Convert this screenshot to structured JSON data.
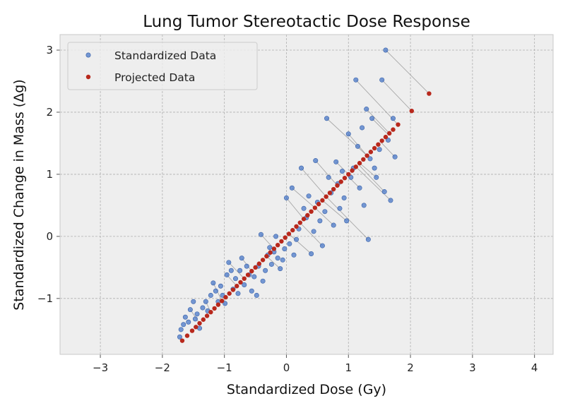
{
  "chart_data": {
    "type": "scatter",
    "title": "Lung Tumor Stereotactic Dose Response",
    "xlabel": "Standardized Dose (Gy)",
    "ylabel": "Standardized Change in Mass (Δg)",
    "xlim": [
      -3.65,
      4.3
    ],
    "ylim": [
      -1.9,
      3.25
    ],
    "xticks": [
      -3,
      -2,
      -1,
      0,
      1,
      2,
      3,
      4
    ],
    "yticks": [
      -1,
      0,
      1,
      2,
      3
    ],
    "xtick_labels": [
      "−3",
      "−2",
      "−1",
      "0",
      "1",
      "2",
      "3",
      "4"
    ],
    "ytick_labels": [
      "−1",
      "0",
      "1",
      "2",
      "3"
    ],
    "grid": true,
    "legend_position": "top-left",
    "colors": {
      "standardized": "#4a78c8",
      "projected": "#b8281c",
      "projection_line": "#8a8a8a",
      "plot_background": "#eeeeee",
      "grid": "#b0b0b0"
    },
    "series": [
      {
        "name": "Standardized Data",
        "points": [
          [
            -1.72,
            -1.62
          ],
          [
            -1.7,
            -1.5
          ],
          [
            -1.66,
            -1.42
          ],
          [
            -1.63,
            -1.3
          ],
          [
            -1.58,
            -1.38
          ],
          [
            -1.55,
            -1.18
          ],
          [
            -1.5,
            -1.05
          ],
          [
            -1.47,
            -1.33
          ],
          [
            -1.44,
            -1.25
          ],
          [
            -1.4,
            -1.48
          ],
          [
            -1.35,
            -1.15
          ],
          [
            -1.3,
            -1.05
          ],
          [
            -1.27,
            -1.2
          ],
          [
            -1.22,
            -0.95
          ],
          [
            -1.18,
            -0.75
          ],
          [
            -1.14,
            -0.88
          ],
          [
            -1.1,
            -1.05
          ],
          [
            -1.06,
            -0.8
          ],
          [
            -1.03,
            -0.95
          ],
          [
            -0.99,
            -1.08
          ],
          [
            -0.96,
            -0.62
          ],
          [
            -0.93,
            -0.42
          ],
          [
            -0.89,
            -0.55
          ],
          [
            -0.86,
            -0.85
          ],
          [
            -0.82,
            -0.68
          ],
          [
            -0.78,
            -0.92
          ],
          [
            -0.75,
            -0.55
          ],
          [
            -0.72,
            -0.35
          ],
          [
            -0.68,
            -0.78
          ],
          [
            -0.64,
            -0.48
          ],
          [
            -0.6,
            -0.62
          ],
          [
            -0.56,
            -0.88
          ],
          [
            -0.52,
            -0.65
          ],
          [
            -0.48,
            -0.95
          ],
          [
            -0.45,
            -0.48
          ],
          [
            -0.41,
            0.03
          ],
          [
            -0.38,
            -0.72
          ],
          [
            -0.34,
            -0.55
          ],
          [
            -0.3,
            -0.3
          ],
          [
            -0.27,
            -0.18
          ],
          [
            -0.24,
            -0.45
          ],
          [
            -0.2,
            -0.25
          ],
          [
            -0.17,
            0.0
          ],
          [
            -0.14,
            -0.35
          ],
          [
            -0.1,
            -0.52
          ],
          [
            -0.06,
            -0.38
          ],
          [
            -0.03,
            -0.2
          ],
          [
            0.0,
            0.62
          ],
          [
            0.05,
            -0.12
          ],
          [
            0.09,
            0.78
          ],
          [
            0.12,
            -0.3
          ],
          [
            0.16,
            -0.05
          ],
          [
            0.2,
            0.12
          ],
          [
            0.24,
            1.1
          ],
          [
            0.28,
            0.45
          ],
          [
            0.32,
            0.3
          ],
          [
            0.36,
            0.65
          ],
          [
            0.4,
            -0.28
          ],
          [
            0.44,
            0.08
          ],
          [
            0.47,
            1.22
          ],
          [
            0.5,
            0.55
          ],
          [
            0.54,
            0.25
          ],
          [
            0.58,
            -0.15
          ],
          [
            0.62,
            0.4
          ],
          [
            0.65,
            1.9
          ],
          [
            0.68,
            0.95
          ],
          [
            0.72,
            0.7
          ],
          [
            0.76,
            0.18
          ],
          [
            0.8,
            1.2
          ],
          [
            0.83,
            0.85
          ],
          [
            0.86,
            0.45
          ],
          [
            0.9,
            1.05
          ],
          [
            0.93,
            0.62
          ],
          [
            0.97,
            0.25
          ],
          [
            1.0,
            1.65
          ],
          [
            1.04,
            0.95
          ],
          [
            1.08,
            1.1
          ],
          [
            1.12,
            2.52
          ],
          [
            1.15,
            1.45
          ],
          [
            1.18,
            0.78
          ],
          [
            1.22,
            1.75
          ],
          [
            1.25,
            0.5
          ],
          [
            1.29,
            2.05
          ],
          [
            1.32,
            -0.05
          ],
          [
            1.35,
            1.25
          ],
          [
            1.38,
            1.9
          ],
          [
            1.42,
            1.1
          ],
          [
            1.45,
            0.95
          ],
          [
            1.5,
            1.4
          ],
          [
            1.54,
            2.52
          ],
          [
            1.58,
            0.72
          ],
          [
            1.6,
            3.0
          ],
          [
            1.64,
            1.55
          ],
          [
            1.68,
            0.58
          ],
          [
            1.72,
            1.9
          ],
          [
            1.75,
            1.28
          ]
        ]
      },
      {
        "name": "Projected Data",
        "points": [
          [
            -1.68,
            -1.68
          ],
          [
            -1.6,
            -1.6
          ],
          [
            -1.52,
            -1.52
          ],
          [
            -1.46,
            -1.46
          ],
          [
            -1.4,
            -1.4
          ],
          [
            -1.34,
            -1.34
          ],
          [
            -1.28,
            -1.28
          ],
          [
            -1.22,
            -1.22
          ],
          [
            -1.16,
            -1.16
          ],
          [
            -1.1,
            -1.1
          ],
          [
            -1.04,
            -1.04
          ],
          [
            -0.98,
            -0.98
          ],
          [
            -0.92,
            -0.92
          ],
          [
            -0.86,
            -0.86
          ],
          [
            -0.8,
            -0.8
          ],
          [
            -0.74,
            -0.74
          ],
          [
            -0.68,
            -0.68
          ],
          [
            -0.62,
            -0.62
          ],
          [
            -0.56,
            -0.56
          ],
          [
            -0.5,
            -0.5
          ],
          [
            -0.44,
            -0.44
          ],
          [
            -0.38,
            -0.38
          ],
          [
            -0.32,
            -0.32
          ],
          [
            -0.26,
            -0.26
          ],
          [
            -0.2,
            -0.2
          ],
          [
            -0.14,
            -0.14
          ],
          [
            -0.08,
            -0.08
          ],
          [
            -0.02,
            -0.02
          ],
          [
            0.04,
            0.04
          ],
          [
            0.1,
            0.1
          ],
          [
            0.16,
            0.16
          ],
          [
            0.22,
            0.22
          ],
          [
            0.28,
            0.28
          ],
          [
            0.34,
            0.34
          ],
          [
            0.4,
            0.4
          ],
          [
            0.46,
            0.46
          ],
          [
            0.52,
            0.52
          ],
          [
            0.58,
            0.58
          ],
          [
            0.64,
            0.64
          ],
          [
            0.7,
            0.7
          ],
          [
            0.76,
            0.76
          ],
          [
            0.82,
            0.82
          ],
          [
            0.88,
            0.88
          ],
          [
            0.94,
            0.94
          ],
          [
            1.0,
            1.0
          ],
          [
            1.06,
            1.06
          ],
          [
            1.12,
            1.12
          ],
          [
            1.18,
            1.18
          ],
          [
            1.24,
            1.24
          ],
          [
            1.3,
            1.3
          ],
          [
            1.36,
            1.36
          ],
          [
            1.42,
            1.42
          ],
          [
            1.48,
            1.48
          ],
          [
            1.54,
            1.54
          ],
          [
            1.6,
            1.6
          ],
          [
            1.66,
            1.66
          ],
          [
            1.72,
            1.72
          ],
          [
            1.8,
            1.8
          ],
          [
            2.02,
            2.02
          ],
          [
            2.3,
            2.3
          ]
        ]
      }
    ],
    "projection_pairs": [
      [
        [
          -1.72,
          -1.62
        ],
        [
          -1.68,
          -1.68
        ]
      ],
      [
        [
          -1.55,
          -1.18
        ],
        [
          -1.4,
          -1.4
        ]
      ],
      [
        [
          -1.3,
          -1.05
        ],
        [
          -1.22,
          -1.22
        ]
      ],
      [
        [
          -1.18,
          -0.75
        ],
        [
          -1.04,
          -1.04
        ]
      ],
      [
        [
          -0.96,
          -0.62
        ],
        [
          -0.8,
          -0.8
        ]
      ],
      [
        [
          -0.93,
          -0.42
        ],
        [
          -0.68,
          -0.68
        ]
      ],
      [
        [
          -0.72,
          -0.35
        ],
        [
          -0.56,
          -0.56
        ]
      ],
      [
        [
          -0.41,
          0.03
        ],
        [
          -0.2,
          -0.2
        ]
      ],
      [
        [
          -0.27,
          -0.18
        ],
        [
          -0.26,
          -0.26
        ]
      ],
      [
        [
          -0.1,
          -0.52
        ],
        [
          -0.32,
          -0.32
        ]
      ],
      [
        [
          0.0,
          0.62
        ],
        [
          0.28,
          0.28
        ]
      ],
      [
        [
          0.09,
          0.78
        ],
        [
          0.46,
          0.46
        ]
      ],
      [
        [
          0.24,
          1.1
        ],
        [
          0.64,
          0.64
        ]
      ],
      [
        [
          0.4,
          -0.28
        ],
        [
          0.04,
          0.04
        ]
      ],
      [
        [
          0.47,
          1.22
        ],
        [
          0.82,
          0.82
        ]
      ],
      [
        [
          0.58,
          -0.15
        ],
        [
          0.22,
          0.22
        ]
      ],
      [
        [
          0.65,
          1.9
        ],
        [
          1.3,
          1.3
        ]
      ],
      [
        [
          0.76,
          0.18
        ],
        [
          0.46,
          0.46
        ]
      ],
      [
        [
          0.8,
          1.2
        ],
        [
          1.0,
          1.0
        ]
      ],
      [
        [
          0.97,
          0.25
        ],
        [
          0.58,
          0.58
        ]
      ],
      [
        [
          1.0,
          1.65
        ],
        [
          1.3,
          1.3
        ]
      ],
      [
        [
          1.12,
          2.52
        ],
        [
          1.8,
          1.8
        ]
      ],
      [
        [
          1.18,
          0.78
        ],
        [
          0.98,
          0.98
        ]
      ],
      [
        [
          1.29,
          2.05
        ],
        [
          1.66,
          1.66
        ]
      ],
      [
        [
          1.32,
          -0.05
        ],
        [
          0.64,
          0.64
        ]
      ],
      [
        [
          1.45,
          0.95
        ],
        [
          1.18,
          1.18
        ]
      ],
      [
        [
          1.54,
          2.52
        ],
        [
          2.02,
          2.02
        ]
      ],
      [
        [
          1.58,
          0.72
        ],
        [
          1.16,
          1.16
        ]
      ],
      [
        [
          1.6,
          3.0
        ],
        [
          2.3,
          2.3
        ]
      ],
      [
        [
          1.68,
          0.58
        ],
        [
          1.12,
          1.12
        ]
      ],
      [
        [
          1.75,
          1.28
        ],
        [
          1.52,
          1.52
        ]
      ],
      [
        [
          1.38,
          1.9
        ],
        [
          1.64,
          1.64
        ]
      ]
    ]
  }
}
